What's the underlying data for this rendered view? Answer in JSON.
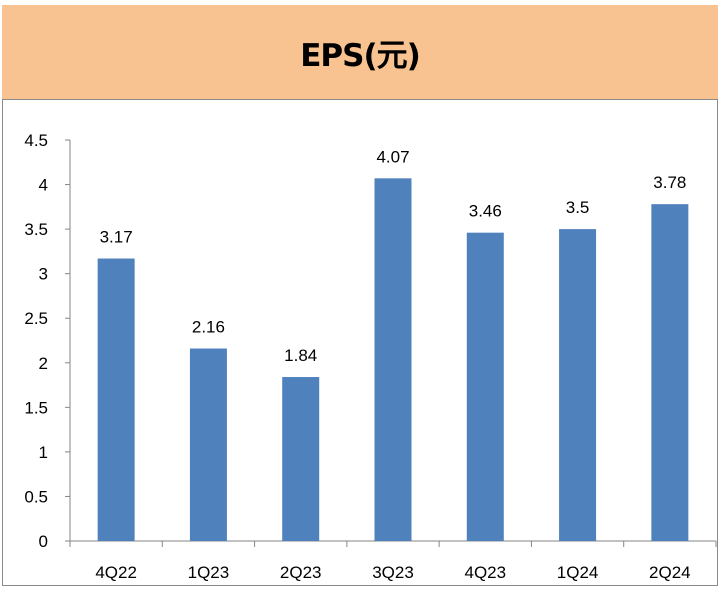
{
  "header": {
    "title": "EPS(元)"
  },
  "colors": {
    "header_bg": "#F8C291",
    "bar": "#4F81BD"
  },
  "chart_data": {
    "type": "bar",
    "title": "EPS(元)",
    "xlabel": "",
    "ylabel": "",
    "categories": [
      "4Q22",
      "1Q23",
      "2Q23",
      "3Q23",
      "4Q23",
      "1Q24",
      "2Q24"
    ],
    "values": [
      3.17,
      2.16,
      1.84,
      4.07,
      3.46,
      3.5,
      3.78
    ],
    "value_labels": [
      "3.17",
      "2.16",
      "1.84",
      "4.07",
      "3.46",
      "3.5",
      "3.78"
    ],
    "ylim": [
      0,
      4.5
    ],
    "yticks": [
      "0",
      "0.5",
      "1",
      "1.5",
      "2",
      "2.5",
      "3",
      "3.5",
      "4",
      "4.5"
    ],
    "grid": false,
    "legend": "none"
  }
}
